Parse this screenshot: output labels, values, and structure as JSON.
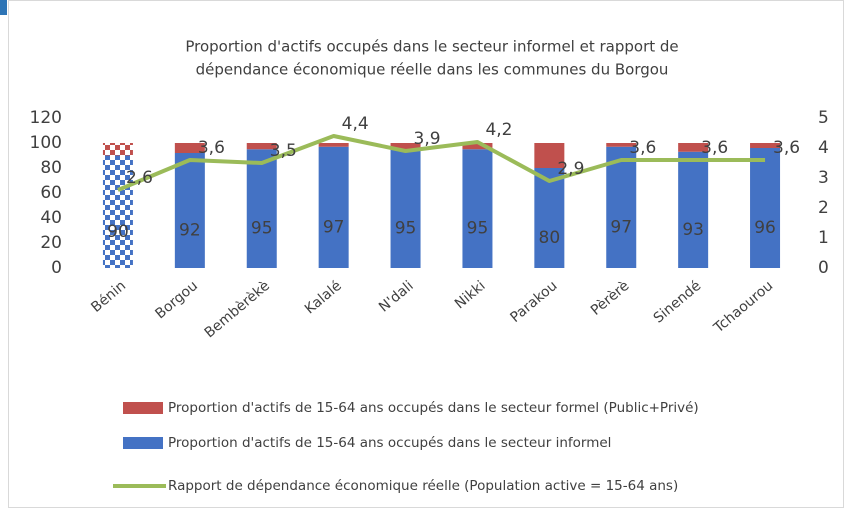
{
  "chart_data": {
    "type": "bar-line",
    "title": [
      "Proportion d'actifs occupés dans le secteur informel et rapport de",
      "dépendance économique réelle dans les communes du Borgou"
    ],
    "categories": [
      "Bénin",
      "Borgou",
      "Bembèrèkè",
      "Kalalé",
      "N'dali",
      "Nikki",
      "Parakou",
      "Pèrèrè",
      "Sinendé",
      "Tchaourou"
    ],
    "series": [
      {
        "name": "Proportion d'actifs de 15-64 ans occupés dans le secteur informel",
        "type": "bar",
        "color": "#4472c4",
        "values": [
          90,
          92,
          95,
          97,
          95,
          95,
          80,
          97,
          93,
          96
        ],
        "show_labels": true
      },
      {
        "name": "Proportion d'actifs de 15-64 ans occupés dans le secteur formel (Public+Privé)",
        "type": "bar",
        "color": "#c0504d",
        "values": [
          10,
          8,
          5,
          3,
          5,
          5,
          20,
          3,
          7,
          4
        ],
        "show_labels": false
      },
      {
        "name": "Rapport de dépendance économique réelle (Population active = 15-64 ans)",
        "type": "line",
        "axis": "y2",
        "color": "#9bbb59",
        "values": [
          2.6,
          3.6,
          3.5,
          4.4,
          3.9,
          4.2,
          2.9,
          3.6,
          3.6,
          3.6
        ],
        "value_labels": [
          "2,6",
          "3,6",
          "3,5",
          "4,4",
          "3,9",
          "4,2",
          "2,9",
          "3,6",
          "3,6",
          "3,6"
        ]
      }
    ],
    "stacked": true,
    "patterned": [
      0
    ],
    "ylim": [
      0,
      120
    ],
    "yticks": [
      0,
      20,
      40,
      60,
      80,
      100,
      120
    ],
    "y2lim": [
      0,
      5
    ],
    "y2ticks": [
      0,
      1,
      2,
      3,
      4,
      5
    ],
    "grid": false,
    "legend": "bottom"
  }
}
